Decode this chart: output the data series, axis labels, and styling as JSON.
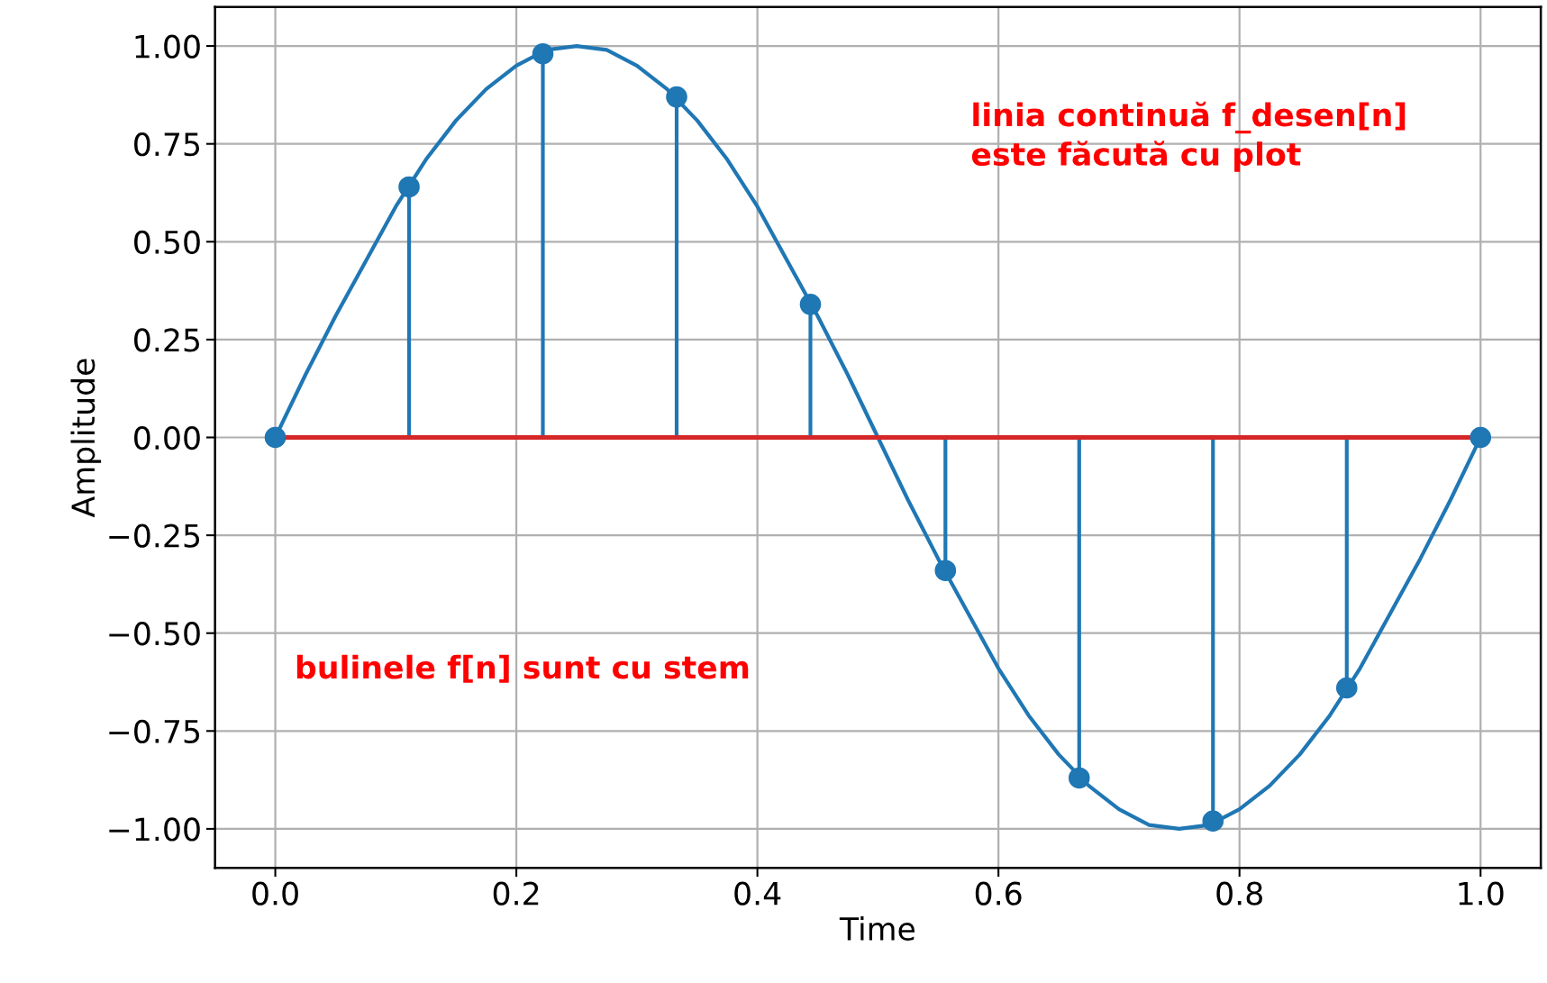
{
  "chart_data": {
    "type": "line",
    "xlabel": "Time",
    "ylabel": "Amplitude",
    "xlim": [
      -0.05,
      1.05
    ],
    "ylim": [
      -1.1,
      1.1
    ],
    "xticks": [
      {
        "value": 0,
        "label": "0.0"
      },
      0.2,
      0.4,
      0.6,
      0.8,
      {
        "value": 1,
        "label": "1.0"
      }
    ],
    "yticks": [
      {
        "value": -1,
        "label": "−1.00"
      },
      {
        "value": -0.75,
        "label": "−0.75"
      },
      {
        "value": -0.5,
        "label": "−0.50"
      },
      {
        "value": -0.25,
        "label": "−0.25"
      },
      {
        "value": 0,
        "label": "0.00"
      },
      {
        "value": 0.25,
        "label": "0.25"
      },
      {
        "value": 0.5,
        "label": "0.50"
      },
      {
        "value": 0.75,
        "label": "0.75"
      },
      {
        "value": 1,
        "label": "1.00"
      }
    ],
    "grid": true,
    "series": [
      {
        "color": "#1f77b4",
        "marker": "none",
        "line_style": "solid",
        "x": [
          0,
          0.025,
          0.05,
          0.075,
          0.1,
          0.125,
          0.15,
          0.175,
          0.2,
          0.225,
          0.25,
          0.275,
          0.3,
          0.325,
          0.35,
          0.375,
          0.4,
          0.425,
          0.45,
          0.475,
          0.5,
          0.525,
          0.55,
          0.575,
          0.6,
          0.625,
          0.65,
          0.675,
          0.7,
          0.725,
          0.75,
          0.775,
          0.8,
          0.825,
          0.85,
          0.875,
          0.9,
          0.925,
          0.95,
          0.975,
          1
        ],
        "values": [
          0,
          0.16,
          0.31,
          0.45,
          0.59,
          0.71,
          0.81,
          0.89,
          0.95,
          0.99,
          1,
          0.99,
          0.95,
          0.89,
          0.81,
          0.71,
          0.59,
          0.45,
          0.31,
          0.16,
          0,
          -0.16,
          -0.31,
          -0.45,
          -0.59,
          -0.71,
          -0.81,
          -0.89,
          -0.95,
          -0.99,
          -1,
          -0.99,
          -0.95,
          -0.89,
          -0.81,
          -0.71,
          -0.59,
          -0.45,
          -0.31,
          -0.16,
          0
        ]
      },
      {
        "type": "lollipop",
        "color": "#1f77b4",
        "marker": "circle",
        "x": [
          0,
          0.111,
          0.222,
          0.333,
          0.444,
          0.556,
          0.667,
          0.778,
          0.889,
          1
        ],
        "values": [
          0,
          0.64,
          0.98,
          0.87,
          0.34,
          -0.34,
          -0.87,
          -0.98,
          -0.64,
          0
        ]
      }
    ],
    "ref_lines": [
      {
        "axis": "y",
        "value": 0,
        "color": "#d62728",
        "line_style": "solid"
      }
    ],
    "annotations": [
      "linia continuă f_desen[n]\neste făcută cu plot",
      "bulinele f[n] sunt cu stem"
    ]
  }
}
